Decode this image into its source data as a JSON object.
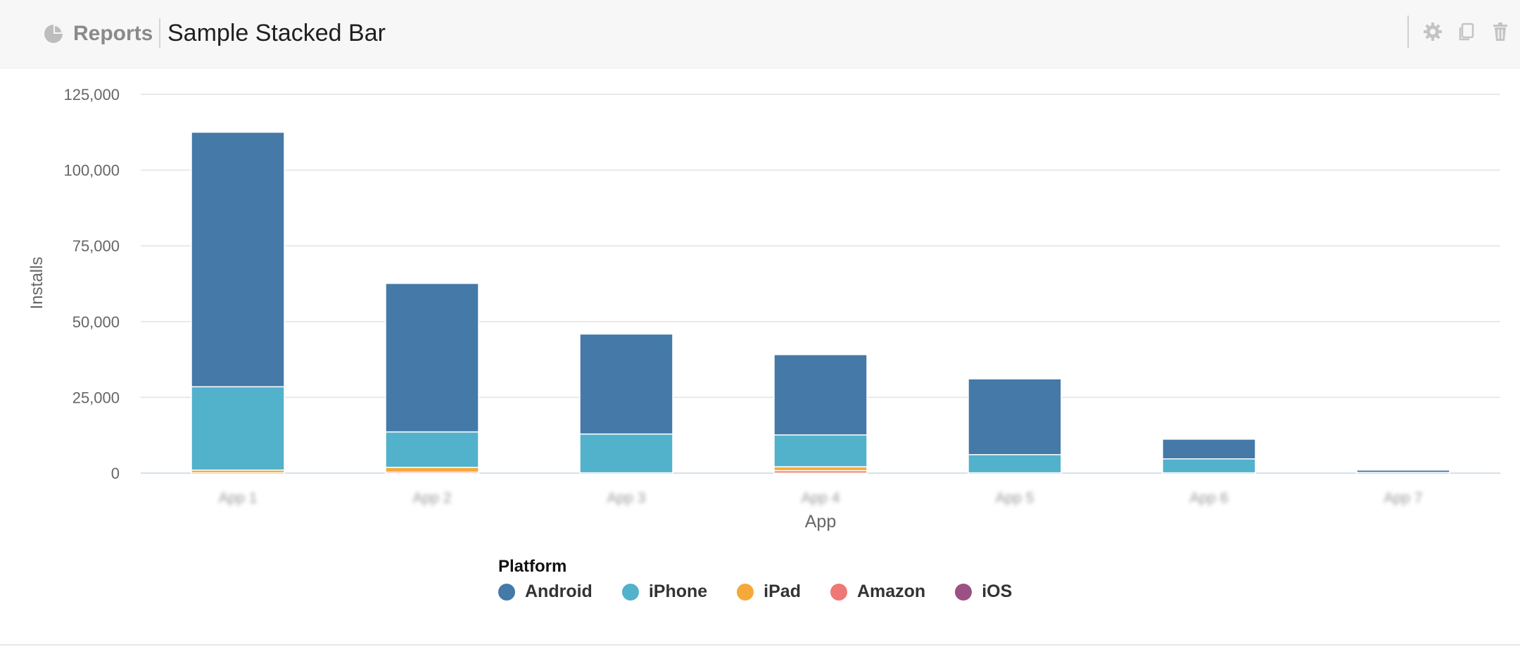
{
  "header": {
    "breadcrumb_label": "Reports",
    "title": "Sample Stacked Bar",
    "icons": [
      "reports-icon",
      "gear-icon",
      "copy-icon",
      "trash-icon"
    ]
  },
  "chart_data": {
    "type": "bar",
    "stacked": true,
    "xlabel": "App",
    "ylabel": "Installs",
    "ylim": [
      0,
      125000
    ],
    "yticks": [
      0,
      25000,
      50000,
      75000,
      100000,
      125000
    ],
    "ytick_labels": [
      "0",
      "25,000",
      "50,000",
      "75,000",
      "100,000",
      "125,000"
    ],
    "categories": [
      "App 1",
      "App 2",
      "App 3",
      "App 4",
      "App 5",
      "App 6",
      "App 7"
    ],
    "categories_note": "x-axis category labels are blurred/unreadable in the screenshot",
    "grid": true,
    "legend_title": "Platform",
    "legend_position": "bottom-center",
    "series": [
      {
        "name": "Android",
        "color": "#4479a8",
        "values": [
          84000,
          49000,
          33000,
          26500,
          25000,
          6500,
          800
        ]
      },
      {
        "name": "iPhone",
        "color": "#52b1cb",
        "values": [
          27500,
          11700,
          12800,
          10500,
          6000,
          4600,
          200
        ]
      },
      {
        "name": "iPad",
        "color": "#f5a93a",
        "values": [
          900,
          1600,
          100,
          1300,
          100,
          100,
          0
        ]
      },
      {
        "name": "Amazon",
        "color": "#ef7775",
        "values": [
          100,
          300,
          0,
          800,
          0,
          0,
          0
        ]
      },
      {
        "name": "iOS",
        "color": "#9c5184",
        "values": [
          0,
          0,
          0,
          0,
          0,
          0,
          0
        ]
      }
    ]
  }
}
